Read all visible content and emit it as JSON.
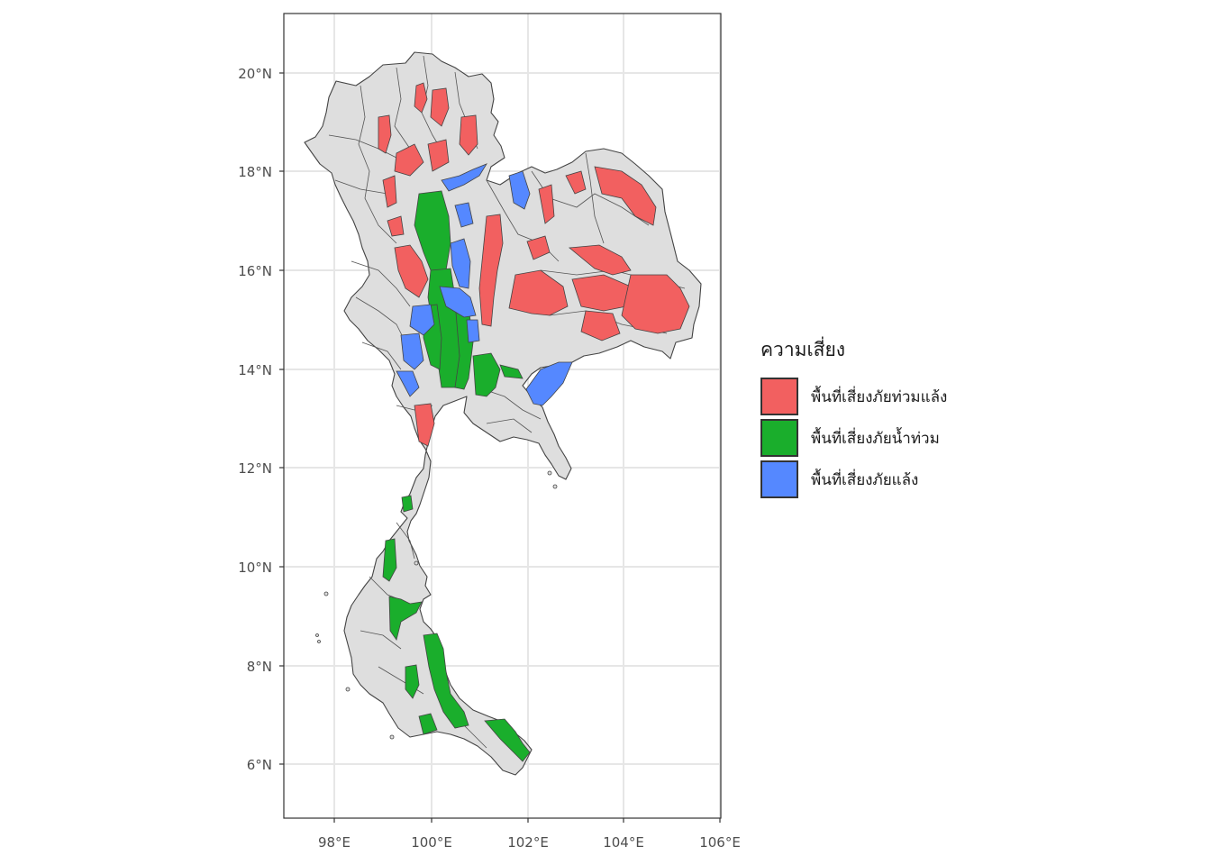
{
  "map": {
    "x_ticks": [
      "98°E",
      "100°E",
      "102°E",
      "104°E",
      "106°E"
    ],
    "y_ticks": [
      "6°N",
      "8°N",
      "10°N",
      "12°N",
      "14°N",
      "16°N",
      "18°N",
      "20°N"
    ],
    "background_fill": "#dedede",
    "border_color": "#444444",
    "grid": true
  },
  "legend": {
    "title": "ความเสี่ยง",
    "items": [
      {
        "label": "พื้นที่เสี่ยงภัยท่วมแล้ง",
        "color": "#f26060"
      },
      {
        "label": "พื้นที่เสี่ยงภัยน้ำท่วม",
        "color": "#1aae2c"
      },
      {
        "label": "พื้นที่เสี่ยงภัยแล้ง",
        "color": "#5588ff"
      }
    ]
  }
}
